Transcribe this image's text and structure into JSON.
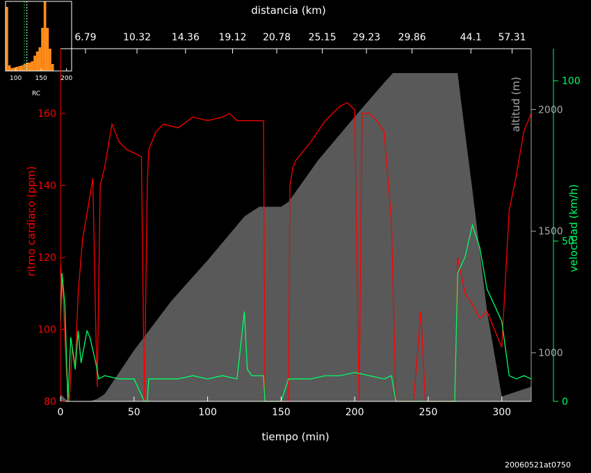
{
  "chart_data": {
    "type": "line",
    "xlabel": "tiempo (min)",
    "xlabel_top": "distancia (km)",
    "ylabel_left": "ritmo cardiaco (ppm)",
    "ylabel_right_altitude": "altitud (m)",
    "ylabel_right_speed": "velocidad (km/h)",
    "footer": "20060521at0750",
    "x_range": [
      0,
      320
    ],
    "x_ticks": [
      0,
      50,
      100,
      150,
      200,
      250,
      300
    ],
    "top_ticks": [
      {
        "t": 17,
        "label": "6.79"
      },
      {
        "t": 52,
        "label": "10.32"
      },
      {
        "t": 85,
        "label": "14.36"
      },
      {
        "t": 117,
        "label": "19.12"
      },
      {
        "t": 147,
        "label": "20.78"
      },
      {
        "t": 178,
        "label": "25.15"
      },
      {
        "t": 208,
        "label": "29.23"
      },
      {
        "t": 239,
        "label": "29.86"
      },
      {
        "t": 279,
        "label": "44.1"
      },
      {
        "t": 307,
        "label": "57.31"
      }
    ],
    "hr_axis": {
      "min": 80,
      "max": 178,
      "ticks": [
        80,
        100,
        120,
        140,
        160
      ],
      "color": "#ff0000"
    },
    "altitude_axis": {
      "min": 800,
      "max": 2250,
      "ticks": [
        1000,
        1500,
        2000
      ],
      "color": "#aaaaaa"
    },
    "speed_axis": {
      "min": 0,
      "max": 110,
      "ticks": [
        0,
        50,
        100
      ],
      "color": "#00ff66"
    },
    "series": [
      {
        "name": "altitud (m)",
        "color": "#595959",
        "kind": "area",
        "x": [
          0,
          5,
          10,
          20,
          25,
          30,
          50,
          75,
          100,
          125,
          135,
          138,
          150,
          155,
          175,
          200,
          220,
          226,
          235,
          250,
          260,
          270,
          272,
          280,
          290,
          300,
          305,
          310,
          315,
          320
        ],
        "y": [
          830,
          800,
          800,
          800,
          810,
          830,
          1010,
          1210,
          1380,
          1560,
          1600,
          1600,
          1600,
          1620,
          1790,
          1970,
          2110,
          2150,
          2150,
          2150,
          2150,
          2150,
          2050,
          1670,
          1170,
          820,
          830,
          840,
          850,
          860
        ]
      },
      {
        "name": "ritmo cardiaco (ppm)",
        "color": "#ff0000",
        "kind": "line",
        "x": [
          0,
          2,
          4,
          6,
          8,
          10,
          12,
          15,
          20,
          22,
          24,
          25,
          27,
          30,
          35,
          40,
          45,
          50,
          55,
          57,
          59,
          60,
          65,
          70,
          80,
          90,
          100,
          110,
          115,
          120,
          125,
          130,
          135,
          138,
          139,
          140,
          150,
          155,
          156,
          158,
          160,
          170,
          180,
          190,
          195,
          200,
          203,
          205,
          210,
          215,
          220,
          225,
          228,
          230,
          232,
          240,
          245,
          248,
          250,
          260,
          268,
          270,
          275,
          280,
          285,
          290,
          295,
          300,
          305,
          310,
          315,
          320
        ],
        "y": [
          118,
          108,
          88,
          80,
          95,
          90,
          110,
          125,
          137,
          142,
          100,
          84,
          140,
          145,
          157,
          152,
          150,
          149,
          148,
          80,
          140,
          150,
          155,
          157,
          156,
          159,
          158,
          159,
          160,
          158,
          158,
          158,
          158,
          158,
          80,
          80,
          80,
          80,
          140,
          145,
          147,
          152,
          158,
          162,
          163,
          161,
          80,
          160,
          160,
          158,
          155,
          130,
          80,
          80,
          80,
          80,
          105,
          80,
          80,
          80,
          80,
          120,
          110,
          107,
          103,
          105,
          100,
          95,
          133,
          143,
          155,
          160
        ]
      },
      {
        "name": "velocidad (km/h)",
        "color": "#00ff66",
        "kind": "line",
        "x": [
          0,
          1,
          3,
          5,
          7,
          10,
          12,
          14,
          18,
          20,
          24,
          26,
          30,
          40,
          50,
          57,
          59,
          60,
          70,
          80,
          90,
          100,
          110,
          120,
          125,
          127,
          130,
          135,
          138,
          139,
          150,
          155,
          160,
          170,
          180,
          190,
          200,
          210,
          220,
          225,
          228,
          232,
          240,
          245,
          250,
          260,
          268,
          270,
          275,
          280,
          285,
          290,
          295,
          300,
          305,
          310,
          315,
          320
        ],
        "y": [
          25,
          40,
          30,
          0,
          20,
          10,
          22,
          12,
          22,
          20,
          12,
          7,
          8,
          7,
          7,
          0,
          0,
          7,
          7,
          7,
          8,
          7,
          8,
          7,
          28,
          10,
          8,
          8,
          8,
          0,
          0,
          7,
          7,
          7,
          8,
          8,
          9,
          8,
          7,
          8,
          0,
          0,
          0,
          0,
          0,
          0,
          0,
          40,
          45,
          55,
          48,
          35,
          30,
          25,
          8,
          7,
          8,
          7
        ]
      }
    ],
    "histogram": {
      "xlabel": "RC",
      "x_ticks": [
        100,
        150,
        200
      ],
      "x_range": [
        80,
        210
      ],
      "bin_width": 5,
      "bins_start": [
        80,
        85,
        90,
        95,
        100,
        105,
        110,
        115,
        120,
        125,
        130,
        135,
        140,
        145,
        150,
        155,
        160,
        165,
        170
      ],
      "counts": [
        92,
        8,
        4,
        5,
        6,
        7,
        8,
        10,
        12,
        12,
        14,
        22,
        28,
        34,
        62,
        100,
        62,
        32,
        10
      ],
      "bar_color": "#ff8c1a",
      "marker_lines": [
        {
          "x": 117,
          "color": "#00cc44"
        },
        {
          "x": 122,
          "color": "#ffffff"
        }
      ]
    }
  }
}
